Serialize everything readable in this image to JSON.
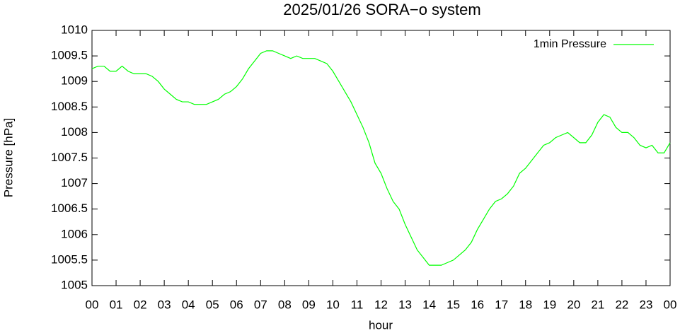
{
  "chart_data": {
    "type": "line",
    "title": "2025/01/26 SORA−o system",
    "x_label": "hour",
    "y_label": "Pressure [hPa]",
    "xlim": [
      0,
      24
    ],
    "xticks": [
      {
        "value": 0,
        "label": "00"
      },
      {
        "value": 1,
        "label": "01"
      },
      {
        "value": 2,
        "label": "02"
      },
      {
        "value": 3,
        "label": "03"
      },
      {
        "value": 4,
        "label": "04"
      },
      {
        "value": 5,
        "label": "05"
      },
      {
        "value": 6,
        "label": "06"
      },
      {
        "value": 7,
        "label": "07"
      },
      {
        "value": 8,
        "label": "08"
      },
      {
        "value": 9,
        "label": "09"
      },
      {
        "value": 10,
        "label": "10"
      },
      {
        "value": 11,
        "label": "11"
      },
      {
        "value": 12,
        "label": "12"
      },
      {
        "value": 13,
        "label": "13"
      },
      {
        "value": 14,
        "label": "14"
      },
      {
        "value": 15,
        "label": "15"
      },
      {
        "value": 16,
        "label": "16"
      },
      {
        "value": 17,
        "label": "17"
      },
      {
        "value": 18,
        "label": "18"
      },
      {
        "value": 19,
        "label": "19"
      },
      {
        "value": 20,
        "label": "20"
      },
      {
        "value": 21,
        "label": "21"
      },
      {
        "value": 22,
        "label": "22"
      },
      {
        "value": 23,
        "label": "23"
      },
      {
        "value": 24,
        "label": "00"
      }
    ],
    "ylim": [
      1005,
      1010
    ],
    "yticks": [
      1005,
      1005.5,
      1006,
      1006.5,
      1007,
      1007.5,
      1008,
      1008.5,
      1009,
      1009.5,
      1010
    ],
    "legend": "top-right",
    "x": [
      0,
      0.25,
      0.5,
      0.75,
      1,
      1.25,
      1.5,
      1.75,
      2,
      2.25,
      2.5,
      2.75,
      3,
      3.25,
      3.5,
      3.75,
      4,
      4.25,
      4.5,
      4.75,
      5,
      5.25,
      5.5,
      5.75,
      6,
      6.25,
      6.5,
      6.75,
      7,
      7.25,
      7.5,
      7.75,
      8,
      8.25,
      8.5,
      8.75,
      9,
      9.25,
      9.5,
      9.75,
      10,
      10.25,
      10.5,
      10.75,
      11,
      11.25,
      11.5,
      11.75,
      12,
      12.25,
      12.5,
      12.75,
      13,
      13.25,
      13.5,
      13.75,
      14,
      14.25,
      14.5,
      14.75,
      15,
      15.25,
      15.5,
      15.75,
      16,
      16.25,
      16.5,
      16.75,
      17,
      17.25,
      17.5,
      17.75,
      18,
      18.25,
      18.5,
      18.75,
      19,
      19.25,
      19.5,
      19.75,
      20,
      20.25,
      20.5,
      20.75,
      21,
      21.25,
      21.5,
      21.75,
      22,
      22.25,
      22.5,
      22.75,
      23,
      23.25,
      23.5,
      23.75,
      24
    ],
    "series": [
      {
        "name": "1min Pressure",
        "color": "#00ff00",
        "values": [
          1009.25,
          1009.3,
          1009.3,
          1009.2,
          1009.2,
          1009.3,
          1009.2,
          1009.15,
          1009.15,
          1009.15,
          1009.1,
          1009.0,
          1008.85,
          1008.75,
          1008.65,
          1008.6,
          1008.6,
          1008.55,
          1008.55,
          1008.55,
          1008.6,
          1008.65,
          1008.75,
          1008.8,
          1008.9,
          1009.05,
          1009.25,
          1009.4,
          1009.55,
          1009.6,
          1009.6,
          1009.55,
          1009.5,
          1009.45,
          1009.5,
          1009.45,
          1009.45,
          1009.45,
          1009.4,
          1009.35,
          1009.2,
          1009.0,
          1008.8,
          1008.6,
          1008.35,
          1008.1,
          1007.8,
          1007.4,
          1007.2,
          1006.9,
          1006.65,
          1006.5,
          1006.2,
          1005.95,
          1005.7,
          1005.55,
          1005.4,
          1005.4,
          1005.4,
          1005.45,
          1005.5,
          1005.6,
          1005.7,
          1005.85,
          1006.1,
          1006.3,
          1006.5,
          1006.65,
          1006.7,
          1006.8,
          1006.95,
          1007.2,
          1007.3,
          1007.45,
          1007.6,
          1007.75,
          1007.8,
          1007.9,
          1007.95,
          1008.0,
          1007.9,
          1007.8,
          1007.8,
          1007.95,
          1008.2,
          1008.35,
          1008.3,
          1008.1,
          1008.0,
          1008.0,
          1007.9,
          1007.75,
          1007.7,
          1007.75,
          1007.6,
          1007.6,
          1007.8
        ]
      }
    ]
  }
}
